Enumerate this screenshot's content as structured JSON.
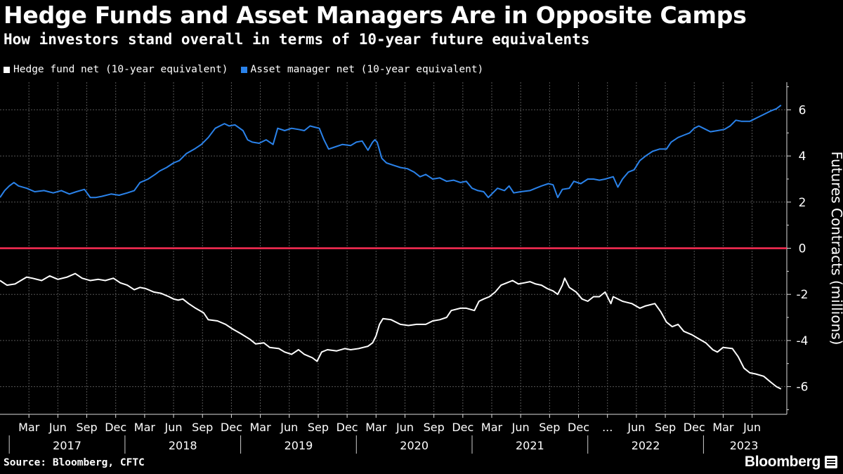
{
  "header": {
    "title": "Hedge Funds and Asset Managers Are in Opposite Camps",
    "subtitle": "How investors stand overall in terms of 10-year future equivalents"
  },
  "legend": [
    {
      "label": "Hedge fund net (10-year equivalent)",
      "color": "#ffffff"
    },
    {
      "label": "Asset manager net (10-year equivalent)",
      "color": "#2a82ea"
    }
  ],
  "footer": {
    "source": "Source: Bloomberg, CFTC",
    "brand": "Bloomberg"
  },
  "chart_data": {
    "type": "line",
    "ylabel": "Futures Contracts (millions)",
    "ylim": [
      -7.2,
      7.2
    ],
    "yticks": [
      6,
      4,
      2,
      0,
      -2,
      -4,
      -6
    ],
    "ytick_labels": [
      "6",
      "4",
      "2",
      "0",
      "-2",
      "-4",
      "-6"
    ],
    "xlim": [
      2016.92,
      2023.72
    ],
    "month_ticks": [
      {
        "x": 2017.17,
        "label": "Mar"
      },
      {
        "x": 2017.42,
        "label": "Jun"
      },
      {
        "x": 2017.67,
        "label": "Sep"
      },
      {
        "x": 2017.92,
        "label": "Dec"
      },
      {
        "x": 2018.17,
        "label": "Mar"
      },
      {
        "x": 2018.42,
        "label": "Jun"
      },
      {
        "x": 2018.67,
        "label": "Sep"
      },
      {
        "x": 2018.92,
        "label": "Dec"
      },
      {
        "x": 2019.17,
        "label": "Mar"
      },
      {
        "x": 2019.42,
        "label": "Jun"
      },
      {
        "x": 2019.67,
        "label": "Sep"
      },
      {
        "x": 2019.92,
        "label": "Dec"
      },
      {
        "x": 2020.17,
        "label": "Mar"
      },
      {
        "x": 2020.42,
        "label": "Jun"
      },
      {
        "x": 2020.67,
        "label": "Sep"
      },
      {
        "x": 2020.92,
        "label": "Dec"
      },
      {
        "x": 2021.17,
        "label": "Mar"
      },
      {
        "x": 2021.42,
        "label": "Jun"
      },
      {
        "x": 2021.67,
        "label": "Sep"
      },
      {
        "x": 2021.92,
        "label": "Dec"
      },
      {
        "x": 2022.17,
        "label": "..."
      },
      {
        "x": 2022.42,
        "label": "Jun"
      },
      {
        "x": 2022.67,
        "label": "Sep"
      },
      {
        "x": 2022.92,
        "label": "Dec"
      },
      {
        "x": 2023.17,
        "label": "Mar"
      },
      {
        "x": 2023.42,
        "label": "Jun"
      }
    ],
    "year_labels": [
      {
        "x": 2017.5,
        "label": "2017"
      },
      {
        "x": 2018.5,
        "label": "2018"
      },
      {
        "x": 2019.5,
        "label": "2019"
      },
      {
        "x": 2020.5,
        "label": "2020"
      },
      {
        "x": 2021.5,
        "label": "2021"
      },
      {
        "x": 2022.5,
        "label": "2022"
      },
      {
        "x": 2023.35,
        "label": "2023"
      }
    ],
    "year_dividers": [
      2017,
      2018,
      2019,
      2020,
      2021,
      2022,
      2023
    ],
    "zero_line_color": "#ff2d55",
    "series": [
      {
        "name": "Hedge fund net (10-year equivalent)",
        "color": "#ffffff",
        "points": [
          [
            2016.92,
            -1.4
          ],
          [
            2016.98,
            -1.6
          ],
          [
            2017.05,
            -1.55
          ],
          [
            2017.1,
            -1.4
          ],
          [
            2017.15,
            -1.25
          ],
          [
            2017.2,
            -1.3
          ],
          [
            2017.28,
            -1.4
          ],
          [
            2017.35,
            -1.2
          ],
          [
            2017.42,
            -1.35
          ],
          [
            2017.5,
            -1.25
          ],
          [
            2017.57,
            -1.1
          ],
          [
            2017.63,
            -1.3
          ],
          [
            2017.7,
            -1.4
          ],
          [
            2017.77,
            -1.35
          ],
          [
            2017.83,
            -1.4
          ],
          [
            2017.9,
            -1.3
          ],
          [
            2017.96,
            -1.5
          ],
          [
            2018.02,
            -1.6
          ],
          [
            2018.08,
            -1.8
          ],
          [
            2018.13,
            -1.7
          ],
          [
            2018.18,
            -1.75
          ],
          [
            2018.25,
            -1.9
          ],
          [
            2018.31,
            -1.95
          ],
          [
            2018.38,
            -2.1
          ],
          [
            2018.42,
            -2.2
          ],
          [
            2018.46,
            -2.25
          ],
          [
            2018.5,
            -2.2
          ],
          [
            2018.55,
            -2.4
          ],
          [
            2018.61,
            -2.6
          ],
          [
            2018.68,
            -2.8
          ],
          [
            2018.72,
            -3.1
          ],
          [
            2018.8,
            -3.15
          ],
          [
            2018.87,
            -3.3
          ],
          [
            2018.93,
            -3.5
          ],
          [
            2019.0,
            -3.7
          ],
          [
            2019.08,
            -3.95
          ],
          [
            2019.13,
            -4.15
          ],
          [
            2019.2,
            -4.1
          ],
          [
            2019.25,
            -4.3
          ],
          [
            2019.33,
            -4.35
          ],
          [
            2019.38,
            -4.5
          ],
          [
            2019.44,
            -4.6
          ],
          [
            2019.5,
            -4.4
          ],
          [
            2019.55,
            -4.6
          ],
          [
            2019.62,
            -4.75
          ],
          [
            2019.66,
            -4.9
          ],
          [
            2019.7,
            -4.5
          ],
          [
            2019.75,
            -4.4
          ],
          [
            2019.83,
            -4.45
          ],
          [
            2019.9,
            -4.35
          ],
          [
            2019.95,
            -4.4
          ],
          [
            2020.02,
            -4.35
          ],
          [
            2020.06,
            -4.3
          ],
          [
            2020.1,
            -4.25
          ],
          [
            2020.14,
            -4.1
          ],
          [
            2020.17,
            -3.8
          ],
          [
            2020.2,
            -3.3
          ],
          [
            2020.23,
            -3.05
          ],
          [
            2020.3,
            -3.1
          ],
          [
            2020.38,
            -3.3
          ],
          [
            2020.45,
            -3.35
          ],
          [
            2020.52,
            -3.3
          ],
          [
            2020.6,
            -3.3
          ],
          [
            2020.66,
            -3.15
          ],
          [
            2020.72,
            -3.1
          ],
          [
            2020.78,
            -3.0
          ],
          [
            2020.82,
            -2.7
          ],
          [
            2020.9,
            -2.6
          ],
          [
            2020.95,
            -2.6
          ],
          [
            2021.02,
            -2.7
          ],
          [
            2021.06,
            -2.3
          ],
          [
            2021.1,
            -2.2
          ],
          [
            2021.15,
            -2.1
          ],
          [
            2021.2,
            -1.9
          ],
          [
            2021.25,
            -1.6
          ],
          [
            2021.3,
            -1.5
          ],
          [
            2021.35,
            -1.4
          ],
          [
            2021.4,
            -1.55
          ],
          [
            2021.45,
            -1.5
          ],
          [
            2021.5,
            -1.45
          ],
          [
            2021.55,
            -1.55
          ],
          [
            2021.6,
            -1.6
          ],
          [
            2021.65,
            -1.75
          ],
          [
            2021.7,
            -1.85
          ],
          [
            2021.74,
            -2.0
          ],
          [
            2021.78,
            -1.6
          ],
          [
            2021.8,
            -1.3
          ],
          [
            2021.84,
            -1.7
          ],
          [
            2021.9,
            -1.9
          ],
          [
            2021.95,
            -2.2
          ],
          [
            2022.0,
            -2.3
          ],
          [
            2022.05,
            -2.1
          ],
          [
            2022.1,
            -2.1
          ],
          [
            2022.15,
            -1.9
          ],
          [
            2022.2,
            -2.4
          ],
          [
            2022.22,
            -2.1
          ],
          [
            2022.3,
            -2.3
          ],
          [
            2022.38,
            -2.4
          ],
          [
            2022.45,
            -2.6
          ],
          [
            2022.5,
            -2.5
          ],
          [
            2022.58,
            -2.4
          ],
          [
            2022.63,
            -2.75
          ],
          [
            2022.68,
            -3.2
          ],
          [
            2022.73,
            -3.4
          ],
          [
            2022.78,
            -3.3
          ],
          [
            2022.83,
            -3.6
          ],
          [
            2022.9,
            -3.75
          ],
          [
            2022.95,
            -3.9
          ],
          [
            2023.02,
            -4.1
          ],
          [
            2023.08,
            -4.4
          ],
          [
            2023.12,
            -4.5
          ],
          [
            2023.17,
            -4.3
          ],
          [
            2023.25,
            -4.35
          ],
          [
            2023.3,
            -4.7
          ],
          [
            2023.35,
            -5.2
          ],
          [
            2023.4,
            -5.4
          ],
          [
            2023.45,
            -5.45
          ],
          [
            2023.52,
            -5.55
          ],
          [
            2023.58,
            -5.8
          ],
          [
            2023.63,
            -6.0
          ],
          [
            2023.67,
            -6.1
          ]
        ]
      },
      {
        "name": "Asset manager net (10-year equivalent)",
        "color": "#2a82ea",
        "points": [
          [
            2016.92,
            2.2
          ],
          [
            2016.96,
            2.5
          ],
          [
            2017.0,
            2.7
          ],
          [
            2017.04,
            2.85
          ],
          [
            2017.08,
            2.7
          ],
          [
            2017.15,
            2.6
          ],
          [
            2017.22,
            2.45
          ],
          [
            2017.3,
            2.5
          ],
          [
            2017.38,
            2.4
          ],
          [
            2017.45,
            2.5
          ],
          [
            2017.52,
            2.35
          ],
          [
            2017.58,
            2.45
          ],
          [
            2017.65,
            2.55
          ],
          [
            2017.7,
            2.2
          ],
          [
            2017.75,
            2.2
          ],
          [
            2017.8,
            2.25
          ],
          [
            2017.88,
            2.35
          ],
          [
            2017.95,
            2.3
          ],
          [
            2018.02,
            2.4
          ],
          [
            2018.08,
            2.5
          ],
          [
            2018.13,
            2.85
          ],
          [
            2018.2,
            3.0
          ],
          [
            2018.26,
            3.2
          ],
          [
            2018.3,
            3.35
          ],
          [
            2018.36,
            3.5
          ],
          [
            2018.42,
            3.7
          ],
          [
            2018.47,
            3.8
          ],
          [
            2018.53,
            4.1
          ],
          [
            2018.6,
            4.3
          ],
          [
            2018.66,
            4.5
          ],
          [
            2018.72,
            4.8
          ],
          [
            2018.78,
            5.2
          ],
          [
            2018.82,
            5.3
          ],
          [
            2018.86,
            5.4
          ],
          [
            2018.9,
            5.3
          ],
          [
            2018.95,
            5.35
          ],
          [
            2019.02,
            5.1
          ],
          [
            2019.06,
            4.7
          ],
          [
            2019.1,
            4.6
          ],
          [
            2019.16,
            4.55
          ],
          [
            2019.22,
            4.7
          ],
          [
            2019.28,
            4.5
          ],
          [
            2019.32,
            5.2
          ],
          [
            2019.38,
            5.1
          ],
          [
            2019.44,
            5.2
          ],
          [
            2019.5,
            5.15
          ],
          [
            2019.55,
            5.1
          ],
          [
            2019.6,
            5.3
          ],
          [
            2019.64,
            5.25
          ],
          [
            2019.68,
            5.2
          ],
          [
            2019.72,
            4.7
          ],
          [
            2019.76,
            4.3
          ],
          [
            2019.82,
            4.4
          ],
          [
            2019.88,
            4.5
          ],
          [
            2019.95,
            4.45
          ],
          [
            2020.0,
            4.6
          ],
          [
            2020.05,
            4.65
          ],
          [
            2020.1,
            4.25
          ],
          [
            2020.14,
            4.6
          ],
          [
            2020.16,
            4.7
          ],
          [
            2020.18,
            4.6
          ],
          [
            2020.22,
            3.9
          ],
          [
            2020.26,
            3.7
          ],
          [
            2020.32,
            3.6
          ],
          [
            2020.38,
            3.5
          ],
          [
            2020.44,
            3.45
          ],
          [
            2020.5,
            3.3
          ],
          [
            2020.55,
            3.1
          ],
          [
            2020.6,
            3.2
          ],
          [
            2020.66,
            3.0
          ],
          [
            2020.72,
            3.05
          ],
          [
            2020.78,
            2.9
          ],
          [
            2020.84,
            2.95
          ],
          [
            2020.9,
            2.85
          ],
          [
            2020.95,
            2.9
          ],
          [
            2021.0,
            2.6
          ],
          [
            2021.05,
            2.5
          ],
          [
            2021.1,
            2.45
          ],
          [
            2021.14,
            2.2
          ],
          [
            2021.18,
            2.4
          ],
          [
            2021.22,
            2.6
          ],
          [
            2021.28,
            2.5
          ],
          [
            2021.32,
            2.7
          ],
          [
            2021.36,
            2.4
          ],
          [
            2021.42,
            2.45
          ],
          [
            2021.5,
            2.5
          ],
          [
            2021.55,
            2.6
          ],
          [
            2021.6,
            2.7
          ],
          [
            2021.66,
            2.8
          ],
          [
            2021.7,
            2.75
          ],
          [
            2021.74,
            2.2
          ],
          [
            2021.78,
            2.55
          ],
          [
            2021.84,
            2.6
          ],
          [
            2021.88,
            2.9
          ],
          [
            2021.94,
            2.8
          ],
          [
            2022.0,
            3.0
          ],
          [
            2022.05,
            3.0
          ],
          [
            2022.1,
            2.95
          ],
          [
            2022.15,
            3.0
          ],
          [
            2022.22,
            3.1
          ],
          [
            2022.26,
            2.65
          ],
          [
            2022.3,
            3.0
          ],
          [
            2022.35,
            3.3
          ],
          [
            2022.4,
            3.4
          ],
          [
            2022.45,
            3.8
          ],
          [
            2022.5,
            4.0
          ],
          [
            2022.56,
            4.2
          ],
          [
            2022.62,
            4.3
          ],
          [
            2022.68,
            4.3
          ],
          [
            2022.72,
            4.6
          ],
          [
            2022.78,
            4.8
          ],
          [
            2022.83,
            4.9
          ],
          [
            2022.88,
            5.0
          ],
          [
            2022.92,
            5.2
          ],
          [
            2022.96,
            5.3
          ],
          [
            2023.0,
            5.2
          ],
          [
            2023.06,
            5.05
          ],
          [
            2023.12,
            5.1
          ],
          [
            2023.18,
            5.15
          ],
          [
            2023.23,
            5.3
          ],
          [
            2023.28,
            5.55
          ],
          [
            2023.33,
            5.5
          ],
          [
            2023.4,
            5.5
          ],
          [
            2023.46,
            5.65
          ],
          [
            2023.52,
            5.8
          ],
          [
            2023.58,
            5.95
          ],
          [
            2023.63,
            6.05
          ],
          [
            2023.67,
            6.2
          ]
        ]
      }
    ]
  }
}
